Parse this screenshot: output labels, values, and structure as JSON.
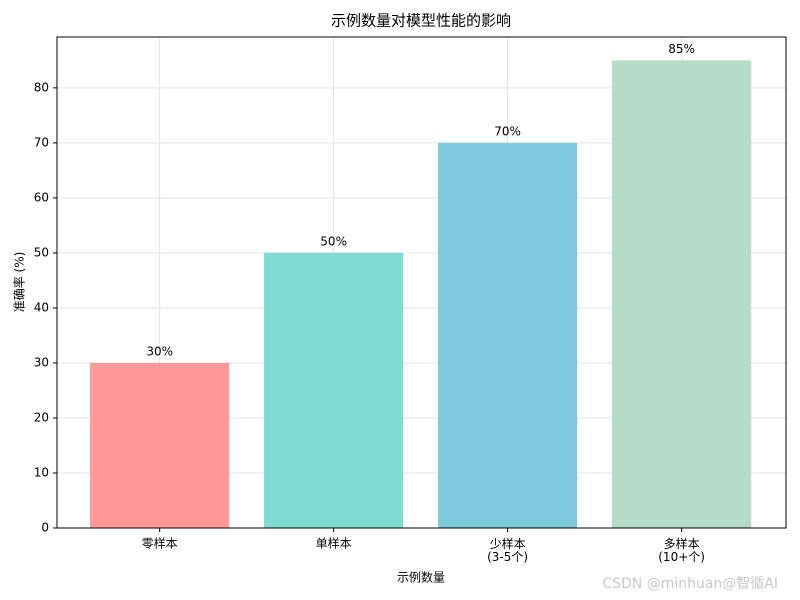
{
  "chart_data": {
    "type": "bar",
    "title": "示例数量对模型性能的影响",
    "x_label": "示例数量",
    "y_label": "准确率 (%)",
    "categories": [
      "零样本",
      "单样本",
      "少样本\n(3-5个)",
      "多样本\n(10+个)"
    ],
    "values": [
      30,
      50,
      70,
      85
    ],
    "value_labels": [
      "30%",
      "50%",
      "70%",
      "85%"
    ],
    "colors": [
      "#ff9999",
      "#80dbd3",
      "#7ecadc",
      "#b4dbc8"
    ],
    "ylim": [
      0,
      89.25
    ],
    "yticks": [
      0,
      10,
      20,
      30,
      40,
      50,
      60,
      70,
      80
    ],
    "grid": true,
    "watermark": "CSDN @minhuan@智循AI"
  }
}
